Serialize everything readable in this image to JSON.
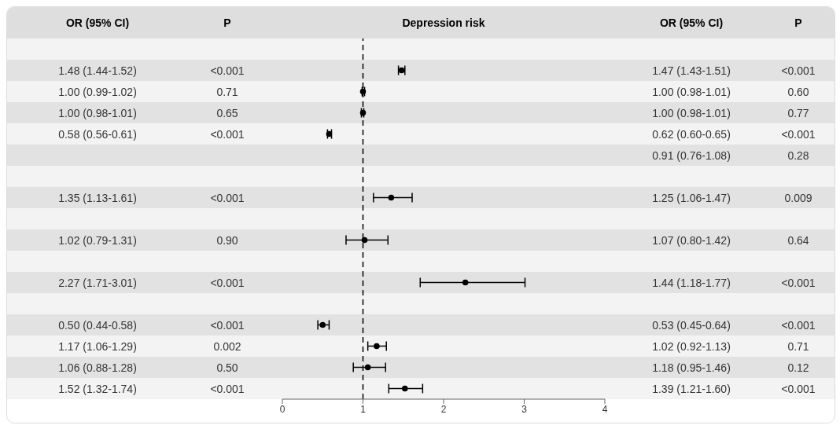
{
  "chart_data": [
    {
      "type": "other",
      "categories": [
        "OR (95% CI)",
        "P"
      ],
      "cell_labels": [
        [
          null,
          null
        ],
        [
          "1.48 (1.44-1.52)",
          "<0.001"
        ],
        [
          "1.00 (0.99-1.02)",
          "0.71"
        ],
        [
          "1.00 (0.98-1.01)",
          "0.65"
        ],
        [
          "0.58 (0.56-0.61)",
          "<0.001"
        ],
        [
          null,
          null
        ],
        [
          null,
          null
        ],
        [
          "1.35 (1.13-1.61)",
          "<0.001"
        ],
        [
          null,
          null
        ],
        [
          "1.02 (0.79-1.31)",
          "0.90"
        ],
        [
          null,
          null
        ],
        [
          "2.27 (1.71-3.01)",
          "<0.001"
        ],
        [
          null,
          null
        ],
        [
          "0.50 (0.44-0.58)",
          "<0.001"
        ],
        [
          "1.17 (1.06-1.29)",
          "0.002"
        ],
        [
          "1.06 (0.88-1.28)",
          "0.50"
        ],
        [
          "1.52 (1.32-1.74)",
          "<0.001"
        ]
      ]
    },
    {
      "type": "scatter",
      "title": "Depression risk",
      "orientation": "horizontal",
      "marker": "circle",
      "color": "#000000",
      "categories": [
        null,
        null,
        null,
        null,
        null,
        null,
        null,
        null,
        null,
        null,
        null,
        null,
        null,
        null,
        null,
        null,
        null
      ],
      "values": [
        null,
        1.48,
        1.0,
        1.0,
        0.58,
        null,
        null,
        1.35,
        null,
        1.02,
        null,
        2.27,
        null,
        0.5,
        1.17,
        1.06,
        1.52
      ],
      "errors": [
        null,
        [
          1.44,
          1.52
        ],
        [
          0.99,
          1.02
        ],
        [
          0.98,
          1.01
        ],
        [
          0.56,
          0.61
        ],
        null,
        null,
        [
          1.13,
          1.61
        ],
        null,
        [
          0.79,
          1.31
        ],
        null,
        [
          1.71,
          3.01
        ],
        null,
        [
          0.44,
          0.58
        ],
        [
          1.06,
          1.29
        ],
        [
          0.88,
          1.28
        ],
        [
          1.32,
          1.74
        ]
      ],
      "xlim": [
        0,
        4
      ],
      "xticks": [
        0,
        1,
        2,
        3,
        4
      ],
      "tick_labels": "x",
      "ref_lines": [
        {
          "axis": "x",
          "value": 1,
          "line_style": "dashed",
          "color": "#000000"
        }
      ]
    },
    {
      "type": "other",
      "categories": [
        "OR (95% CI)",
        "P"
      ],
      "cell_labels": [
        [
          null,
          null
        ],
        [
          "1.47 (1.43-1.51)",
          "<0.001"
        ],
        [
          "1.00 (0.98-1.01)",
          "0.60"
        ],
        [
          "1.00 (0.98-1.01)",
          "0.77"
        ],
        [
          "0.62 (0.60-0.65)",
          "<0.001"
        ],
        [
          "0.91 (0.76-1.08)",
          "0.28"
        ],
        [
          null,
          null
        ],
        [
          "1.25 (1.06-1.47)",
          "0.009"
        ],
        [
          null,
          null
        ],
        [
          "1.07 (0.80-1.42)",
          "0.64"
        ],
        [
          null,
          null
        ],
        [
          "1.44 (1.18-1.77)",
          "<0.001"
        ],
        [
          null,
          null
        ],
        [
          "0.53 (0.45-0.64)",
          "<0.001"
        ],
        [
          "1.02 (0.92-1.13)",
          "0.71"
        ],
        [
          "1.18 (0.95-1.46)",
          "0.12"
        ],
        [
          "1.39 (1.21-1.60)",
          "<0.001"
        ]
      ]
    }
  ]
}
